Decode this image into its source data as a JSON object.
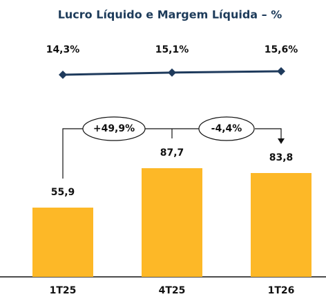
{
  "chart_data": {
    "type": "bar",
    "title": "Lucro Líquido e Margem Líquida – %",
    "categories": [
      "1T25",
      "4T25",
      "1T26"
    ],
    "series": [
      {
        "type": "bar",
        "color": "#fdb827",
        "values": [
          55.9,
          87.7,
          83.8
        ],
        "value_labels": [
          "55,9",
          "87,7",
          "83,8"
        ]
      },
      {
        "type": "line",
        "axis": "y2",
        "color": "#1e3a5c",
        "values": [
          14.3,
          15.1,
          15.6
        ],
        "value_labels": [
          "14,3%",
          "15,1%",
          "15,6%"
        ]
      }
    ],
    "ylim": [
      0,
      100
    ],
    "y2lim": [
      0,
      40
    ],
    "annotations": [
      "+49,9%",
      "-4,4%"
    ]
  }
}
